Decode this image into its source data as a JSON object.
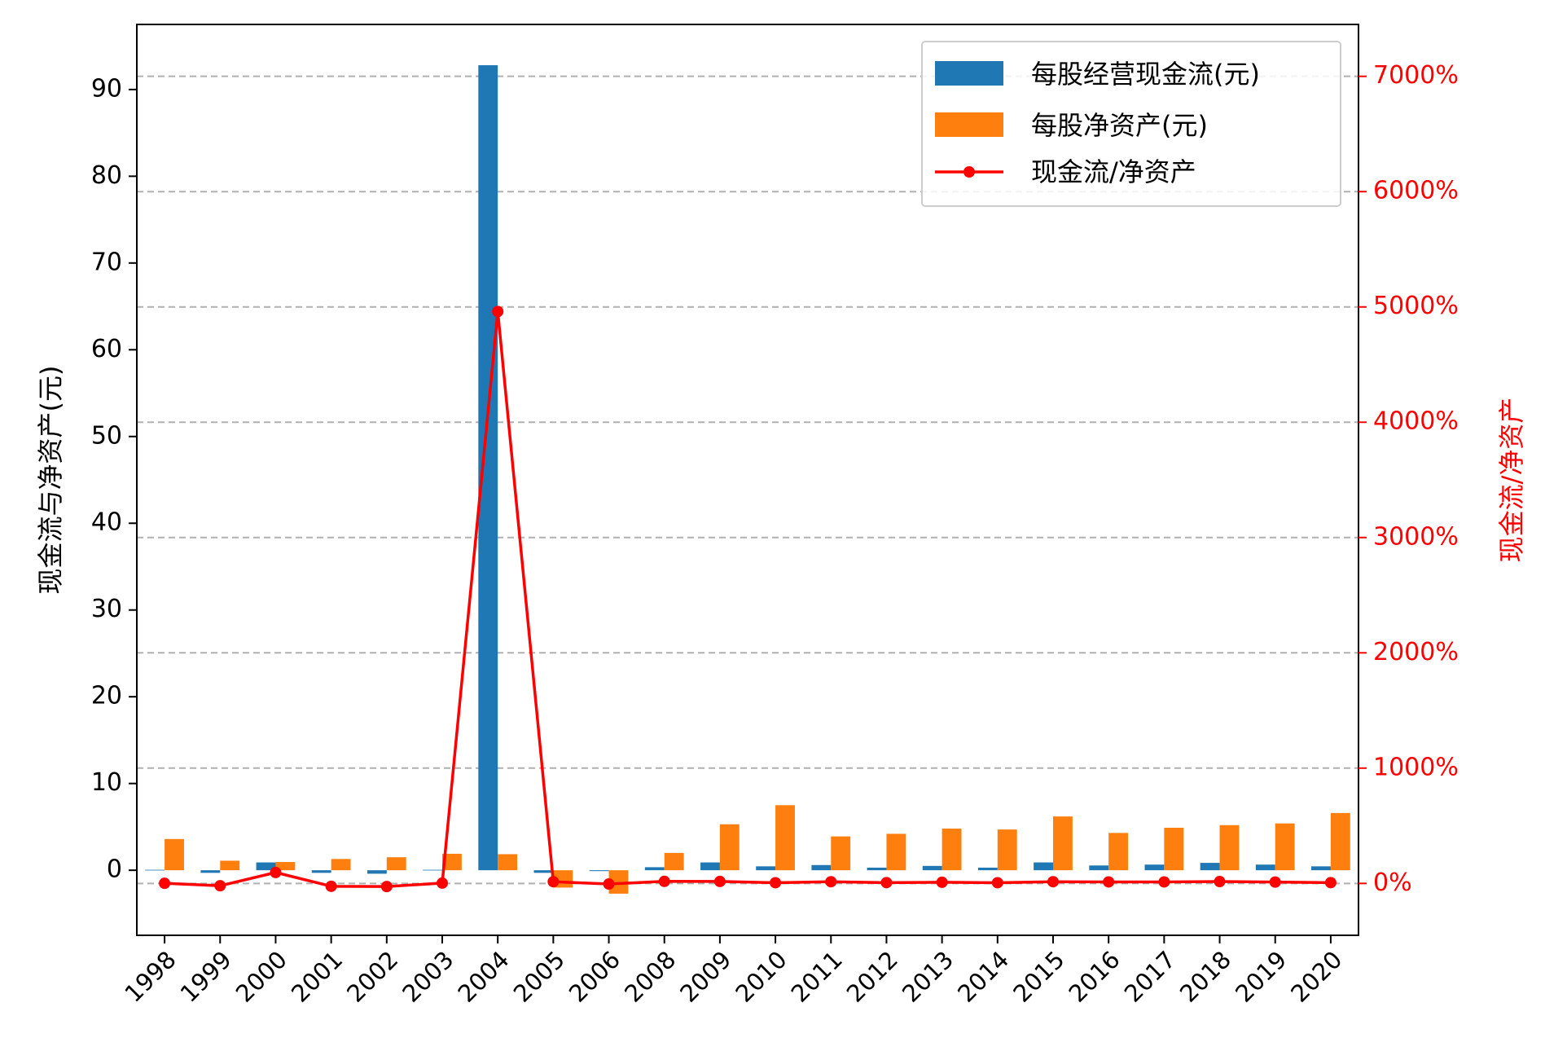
{
  "chart_data": {
    "type": "bar",
    "categories": [
      "1998",
      "1999",
      "2000",
      "2001",
      "2002",
      "2003",
      "2004",
      "2005",
      "2006",
      "2008",
      "2009",
      "2010",
      "2011",
      "2012",
      "2013",
      "2014",
      "2015",
      "2016",
      "2017",
      "2018",
      "2019",
      "2020"
    ],
    "series": [
      {
        "name": "每股经营现金流(元)",
        "type": "bar",
        "axis": "left",
        "color": "#1f77b4",
        "values": [
          0.05,
          -0.3,
          0.9,
          -0.3,
          -0.4,
          0.05,
          92.8,
          -0.3,
          -0.1,
          0.35,
          0.9,
          0.45,
          0.6,
          0.3,
          0.5,
          0.3,
          0.9,
          0.55,
          0.65,
          0.85,
          0.65,
          0.45
        ]
      },
      {
        "name": "每股净资产(元)",
        "type": "bar",
        "axis": "left",
        "color": "#ff7f0e",
        "values": [
          3.6,
          1.1,
          0.95,
          1.3,
          1.5,
          1.9,
          1.85,
          -2.0,
          -2.7,
          2.0,
          5.3,
          7.5,
          3.9,
          4.2,
          4.8,
          4.7,
          6.2,
          4.3,
          4.9,
          5.2,
          5.4,
          6.6
        ]
      },
      {
        "name": "现金流/净资产",
        "type": "line",
        "axis": "right",
        "color": "#ff0000",
        "unit": "%",
        "values": [
          1,
          -20,
          95,
          -25,
          -27,
          3,
          4960,
          15,
          -5,
          18,
          17,
          6,
          15,
          7,
          10,
          6,
          15,
          13,
          13,
          16,
          12,
          7
        ]
      }
    ],
    "y_left": {
      "label": "现金流与净资产(元)",
      "lim": [
        -7.5,
        97.5
      ],
      "ticks": [
        0,
        10,
        20,
        30,
        40,
        50,
        60,
        70,
        80,
        90
      ],
      "tick_labels": [
        "0",
        "10",
        "20",
        "30",
        "40",
        "50",
        "60",
        "70",
        "80",
        "90"
      ]
    },
    "y_right": {
      "label": "现金流/净资产",
      "lim": [
        -450,
        7450
      ],
      "ticks": [
        0,
        1000,
        2000,
        3000,
        4000,
        5000,
        6000,
        7000
      ],
      "tick_labels": [
        "0%",
        "1000%",
        "2000%",
        "3000%",
        "4000%",
        "5000%",
        "6000%",
        "7000%"
      ],
      "color": "#ff0000"
    },
    "grid": "horizontal-dashed (right axis)",
    "legend": "upper-right",
    "xtick_rotation": 45
  }
}
